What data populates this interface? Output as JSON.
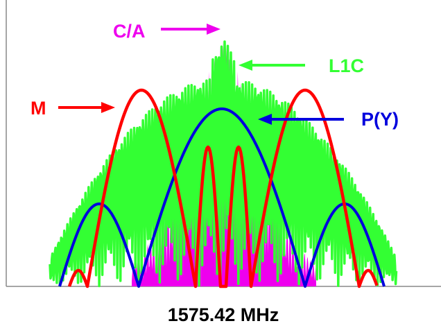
{
  "labels": {
    "ca": "C/A",
    "l1c": "L1C",
    "m": "M",
    "py": "P(Y)",
    "frequency": "1575.42 MHz"
  },
  "colors": {
    "ca": "#ee00ee",
    "l1c": "#33ff33",
    "m": "#ff0000",
    "py": "#0000dd",
    "axis": "#888888",
    "text": "#000000"
  }
}
